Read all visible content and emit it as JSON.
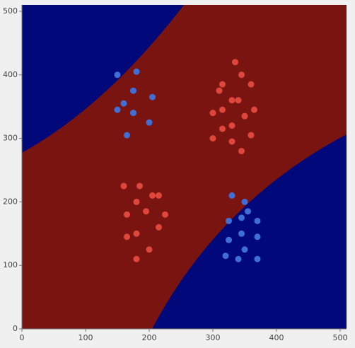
{
  "chart_data": {
    "type": "scatter",
    "xlim": [
      0,
      510
    ],
    "ylim": [
      0,
      510
    ],
    "xticks": [
      0,
      100,
      200,
      300,
      400,
      500
    ],
    "yticks": [
      0,
      100,
      200,
      300,
      400,
      500
    ],
    "series": [
      {
        "color": "#3f6fd6",
        "x": [
          150,
          180,
          175,
          160,
          205,
          150,
          175,
          200,
          165
        ],
        "values": [
          400,
          405,
          375,
          355,
          365,
          345,
          340,
          325,
          305
        ]
      },
      {
        "color": "#e0473c",
        "x": [
          335,
          345,
          315,
          360,
          310,
          330,
          340,
          315,
          365,
          300,
          350,
          330,
          315,
          360,
          300,
          330,
          345
        ],
        "values": [
          420,
          400,
          385,
          385,
          375,
          360,
          360,
          345,
          345,
          340,
          335,
          320,
          315,
          305,
          300,
          295,
          280
        ]
      },
      {
        "color": "#e0473c",
        "x": [
          160,
          185,
          205,
          215,
          180,
          165,
          195,
          225,
          215,
          165,
          180,
          200,
          180
        ],
        "values": [
          225,
          225,
          210,
          210,
          200,
          180,
          185,
          180,
          160,
          145,
          150,
          125,
          110
        ]
      },
      {
        "color": "#3f6fd6",
        "x": [
          330,
          350,
          355,
          325,
          345,
          370,
          345,
          370,
          325,
          350,
          320,
          340,
          370
        ],
        "values": [
          210,
          200,
          185,
          170,
          175,
          170,
          150,
          145,
          140,
          125,
          115,
          110,
          110
        ]
      }
    ]
  }
}
